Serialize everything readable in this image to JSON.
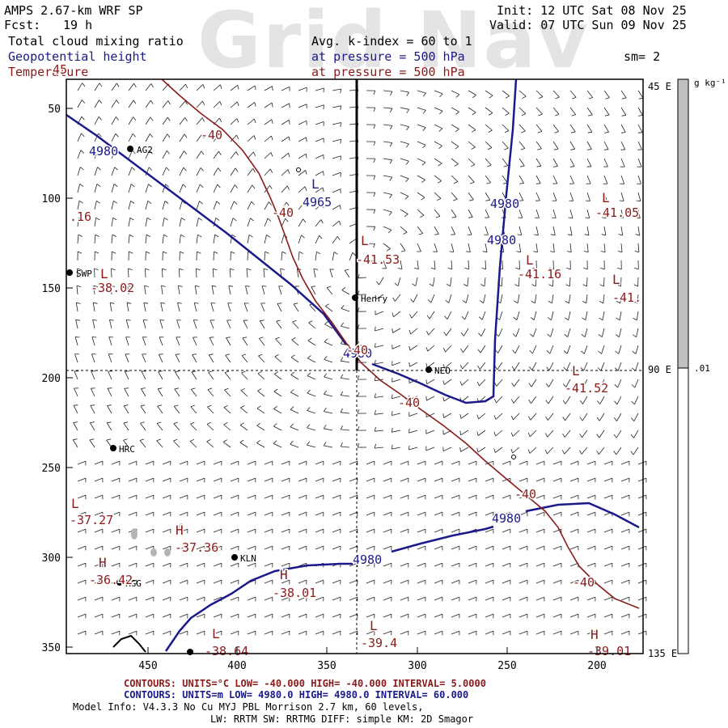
{
  "watermark": "Grid Nav",
  "header": {
    "model": "AMPS 2.67-km WRF SP",
    "fcst_label": "Fcst:",
    "fcst_value": "19 h",
    "init": "Init: 12 UTC Sat 08 Nov 25",
    "valid": "Valid: 07 UTC Sun 09 Nov 25",
    "field1": "Total cloud mixing ratio",
    "avg": "Avg. k-index =  60 to    1",
    "field2": "Geopotential height",
    "pressure1": "at pressure =  500 hPa",
    "sm": "sm= 2",
    "field3": "Temperature",
    "pressure2": "at pressure =  500 hPa"
  },
  "axes": {
    "left_ticks": [
      "50",
      "100",
      "150",
      "200",
      "250",
      "300",
      "350"
    ],
    "bottom_ticks": [
      "450",
      "400",
      "350",
      "300",
      "250",
      "200"
    ],
    "right_ticks": [
      "45 E",
      "90 E",
      "135 E"
    ]
  },
  "colorbar": {
    "units": "g kg⁻¹",
    "value_label": ".01",
    "fill_color": "#c0c0c0"
  },
  "stations": [
    {
      "name": "AG2"
    },
    {
      "name": "SWP"
    },
    {
      "name": "Henry"
    },
    {
      "name": "NEO"
    },
    {
      "name": "HRC"
    },
    {
      "name": "KLN"
    },
    {
      "name": "RGG"
    }
  ],
  "contour_labels": {
    "height": [
      "4980",
      "4965",
      "4980",
      "4980",
      "4980",
      "4980",
      "4980"
    ],
    "temperature": [
      "-40",
      "-40",
      "-40",
      "-40",
      "-40",
      "-40",
      ".16",
      "-38.02",
      "-41.53",
      "-41.16",
      "-41.05",
      "-41.",
      "-41.52",
      "-37.27",
      "-37.36",
      "-36.42",
      "-38.01",
      "-39.4",
      "-38.64",
      "-39.01",
      "45"
    ]
  },
  "extrema": [
    "L",
    "L",
    "L",
    "L",
    "L",
    "L",
    "L",
    "L",
    "H",
    "H",
    "H",
    "L",
    "H",
    "L"
  ],
  "footer": {
    "red_line": "CONTOURS:  UNITS=°C  LOW= -40.000      HIGH= -40.000      INTERVAL=   5.0000",
    "blue_line": "CONTOURS:  UNITS=m  LOW=  4980.0      HIGH=  4980.0      INTERVAL=   60.000",
    "model_info": "Model Info: V4.3.3    No Cu    MYJ PBL  Morrison           2.7 km,  60 levels,",
    "physics": "LW: RRTM SW: RRTMG   DIFF: simple KM: 2D Smagor"
  },
  "colors": {
    "height_contour": "#1a1a8c",
    "temp_contour": "#8b1a1a",
    "wind_barb": "#222222",
    "cloud": "#b4b4b4"
  }
}
